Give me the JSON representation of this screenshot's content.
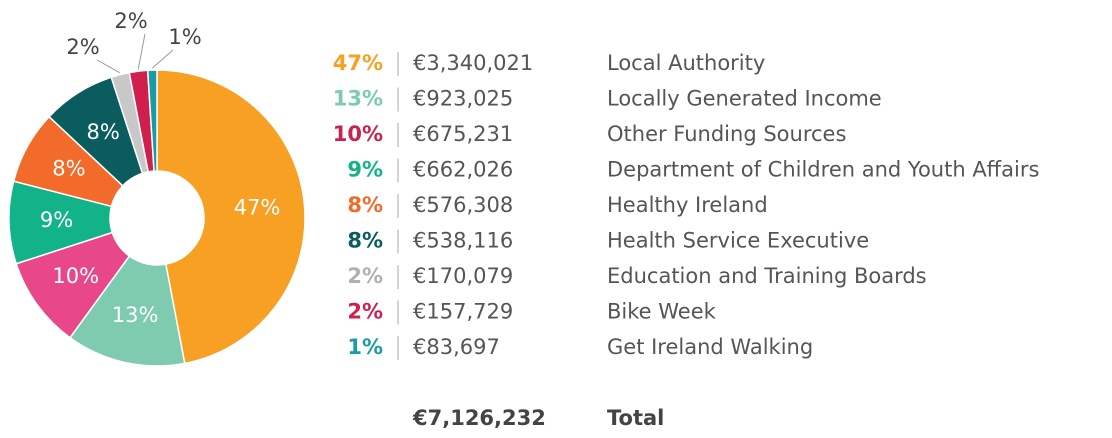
{
  "chart_data": {
    "type": "donut",
    "categories": [
      "Local Authority",
      "Locally Generated Income",
      "Other Funding Sources",
      "Department of Children and Youth Affairs",
      "Healthy Ireland",
      "Health Service Executive",
      "Education and Training Boards",
      "Bike Week",
      "Get Ireland Walking"
    ],
    "values": [
      47,
      13,
      10,
      9,
      8,
      8,
      2,
      2,
      1
    ],
    "value_labels": [
      "47%",
      "13%",
      "10%",
      "9%",
      "8%",
      "8%",
      "2%",
      "2%",
      "1%"
    ],
    "amounts": [
      "€3,340,021",
      "€923,025",
      "€675,231",
      "€662,026",
      "€576,308",
      "€538,116",
      "€170,079",
      "€157,729",
      "€83,697"
    ],
    "colors": [
      "#f7a024",
      "#7ecbb0",
      "#e8488a",
      "#13b38a",
      "#f26b2a",
      "#0a5c5e",
      "#c8c8c8",
      "#d01f4c",
      "#1a9ca8"
    ],
    "label_colors": [
      "#f7a024",
      "#7ecbb0",
      "#c8234a",
      "#13b38a",
      "#f26b2a",
      "#0a5c5e",
      "#b0b0b0",
      "#d01f4c",
      "#1a9ca8"
    ],
    "total_amount": "€7,126,232",
    "total_label": "Total"
  }
}
